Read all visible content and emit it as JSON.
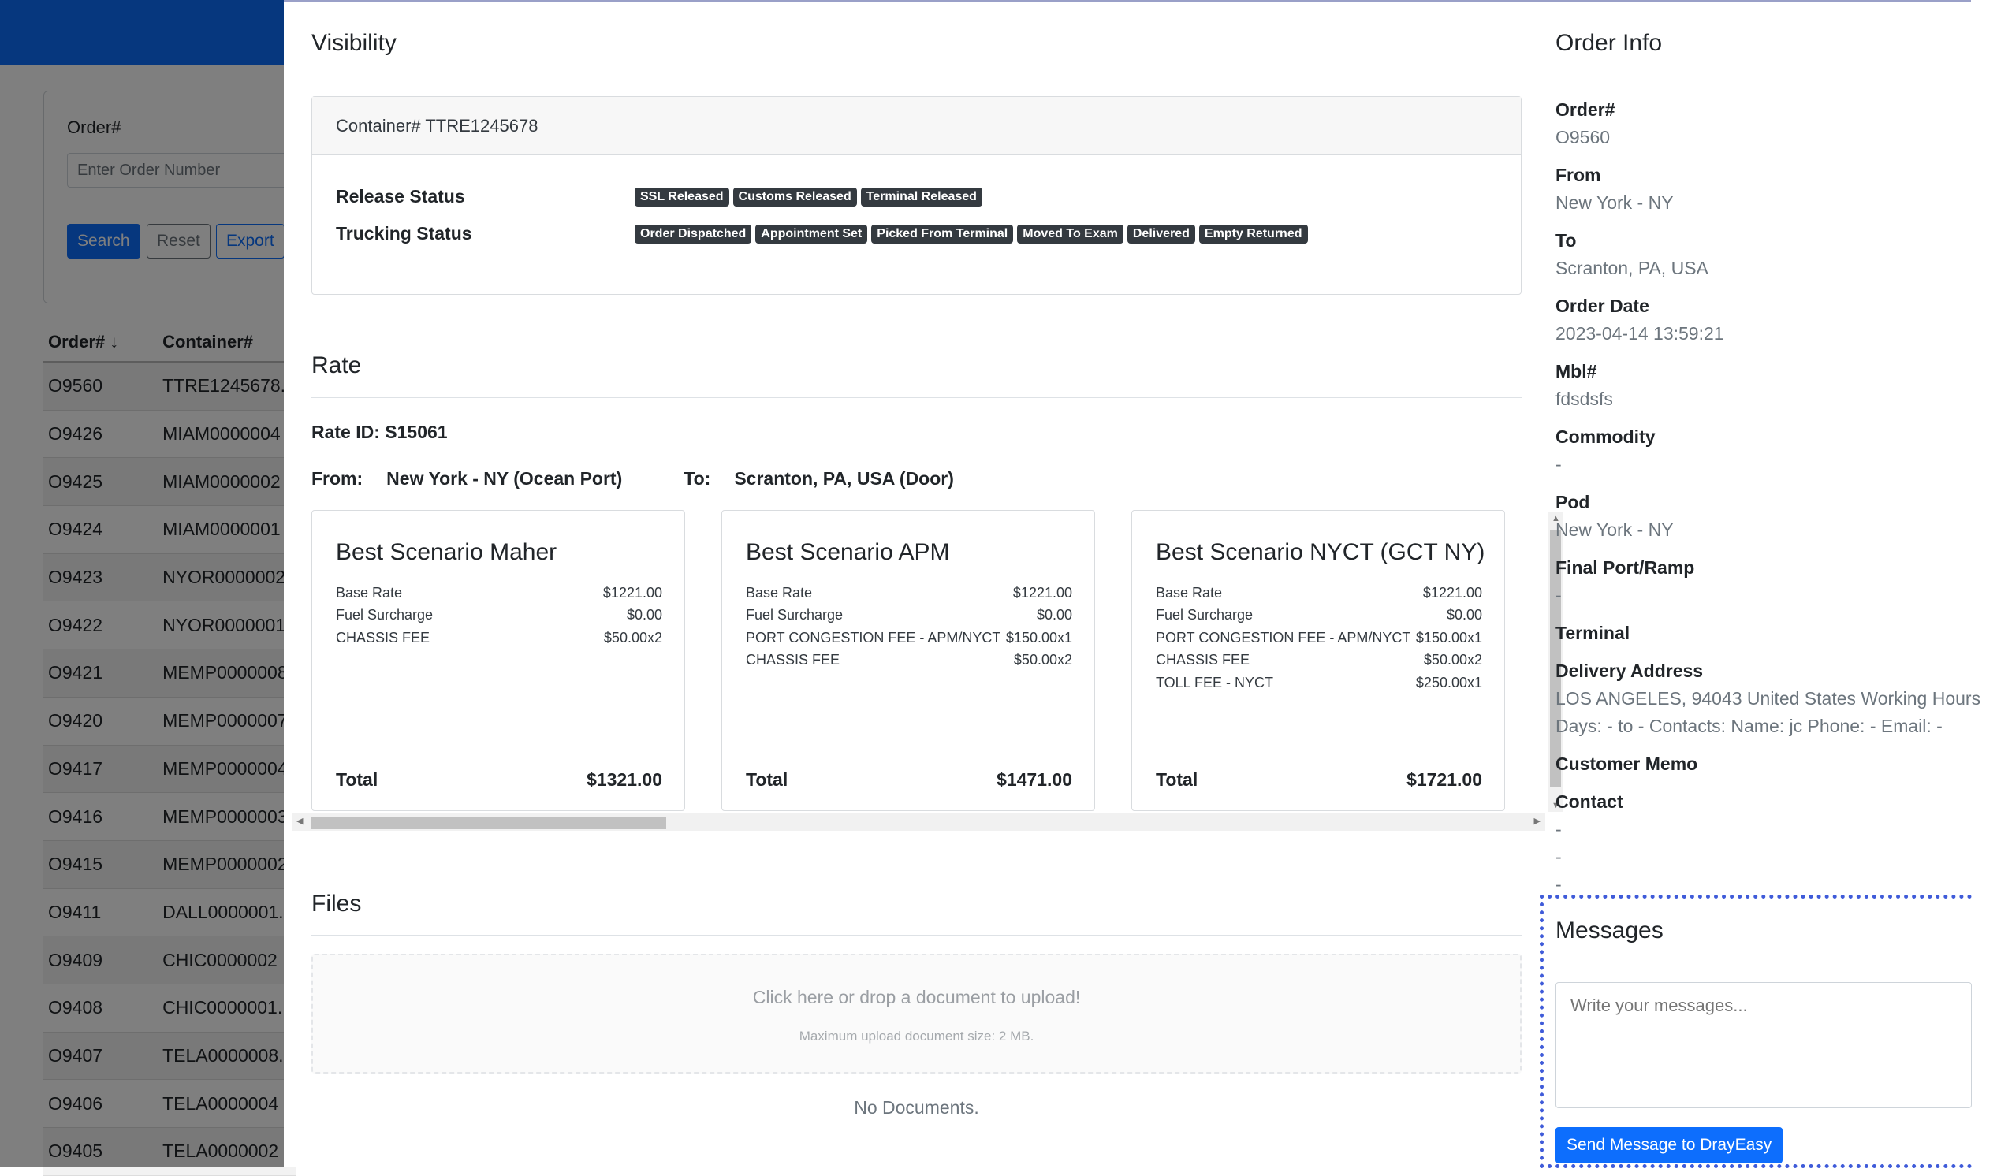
{
  "background": {
    "filter": {
      "order_label": "Order#",
      "order_placeholder": "Enter Order Number",
      "search": "Search",
      "reset": "Reset",
      "export": "Export"
    },
    "table": {
      "headers": [
        "Order# ↓",
        "Container#"
      ],
      "rows": [
        [
          "O9560",
          "TTRE1245678..."
        ],
        [
          "O9426",
          "MIAM0000004"
        ],
        [
          "O9425",
          "MIAM0000002"
        ],
        [
          "O9424",
          "MIAM0000001"
        ],
        [
          "O9423",
          "NYOR0000002"
        ],
        [
          "O9422",
          "NYOR0000001"
        ],
        [
          "O9421",
          "MEMP0000008"
        ],
        [
          "O9420",
          "MEMP0000007"
        ],
        [
          "O9417",
          "MEMP0000004"
        ],
        [
          "O9416",
          "MEMP0000003"
        ],
        [
          "O9415",
          "MEMP0000002"
        ],
        [
          "O9411",
          "DALL0000001..."
        ],
        [
          "O9409",
          "CHIC0000002"
        ],
        [
          "O9408",
          "CHIC0000001..."
        ],
        [
          "O9407",
          "TELA0000008..."
        ],
        [
          "O9406",
          "TELA0000004"
        ],
        [
          "O9405",
          "TELA0000002"
        ]
      ]
    }
  },
  "visibility": {
    "title": "Visibility",
    "container": "Container# TTRE1245678",
    "release_label": "Release Status",
    "release_badges": [
      "SSL Released",
      "Customs Released",
      "Terminal Released"
    ],
    "trucking_label": "Trucking Status",
    "trucking_badges": [
      "Order Dispatched",
      "Appointment Set",
      "Picked From Terminal",
      "Moved To Exam",
      "Delivered",
      "Empty Returned"
    ]
  },
  "rate": {
    "title": "Rate",
    "rate_id": "Rate ID: S15061",
    "from_label": "From:",
    "from_value": "New York - NY (Ocean Port)",
    "to_label": "To:",
    "to_value": "Scranton, PA, USA (Door)",
    "cards": [
      {
        "title": "Best Scenario Maher",
        "fees": [
          [
            "Base Rate",
            "$1221.00"
          ],
          [
            "Fuel Surcharge",
            "$0.00"
          ],
          [
            "CHASSIS FEE",
            "$50.00x2"
          ]
        ],
        "total_label": "Total",
        "total": "$1321.00"
      },
      {
        "title": "Best Scenario APM",
        "fees": [
          [
            "Base Rate",
            "$1221.00"
          ],
          [
            "Fuel Surcharge",
            "$0.00"
          ],
          [
            "PORT CONGESTION FEE - APM/NYCT",
            "$150.00x1"
          ],
          [
            "CHASSIS FEE",
            "$50.00x2"
          ]
        ],
        "total_label": "Total",
        "total": "$1471.00"
      },
      {
        "title": "Best Scenario NYCT (GCT NY)",
        "fees": [
          [
            "Base Rate",
            "$1221.00"
          ],
          [
            "Fuel Surcharge",
            "$0.00"
          ],
          [
            "PORT CONGESTION FEE - APM/NYCT",
            "$150.00x1"
          ],
          [
            "CHASSIS FEE",
            "$50.00x2"
          ],
          [
            "TOLL FEE - NYCT",
            "$250.00x1"
          ]
        ],
        "total_label": "Total",
        "total": "$1721.00"
      }
    ]
  },
  "files": {
    "title": "Files",
    "drop_text": "Click here or drop a document to upload!",
    "drop_sub": "Maximum upload document size: 2 MB.",
    "empty": "No Documents."
  },
  "order_info": {
    "title": "Order Info",
    "fields": [
      {
        "label": "Order#",
        "values": [
          "O9560"
        ]
      },
      {
        "label": "From",
        "values": [
          "New York - NY"
        ]
      },
      {
        "label": "To",
        "values": [
          "Scranton, PA, USA"
        ]
      },
      {
        "label": "Order Date",
        "values": [
          "2023-04-14 13:59:21"
        ]
      },
      {
        "label": "Mbl#",
        "values": [
          "fdsdsfs"
        ]
      },
      {
        "label": "Commodity",
        "values": [
          "-"
        ]
      },
      {
        "label": "Pod",
        "values": [
          "New York - NY"
        ]
      },
      {
        "label": "Final Port/Ramp",
        "values": [
          "-"
        ]
      },
      {
        "label": "Terminal",
        "values": []
      },
      {
        "label": "Delivery Address",
        "values": [
          "LOS ANGELES, 94043 United States Working Hours",
          "Days: - to - Contacts: Name: jc Phone: - Email: -"
        ]
      },
      {
        "label": "Customer Memo",
        "values": []
      },
      {
        "label": "Contact",
        "values": [
          "-",
          "-",
          "-"
        ]
      }
    ]
  },
  "messages": {
    "title": "Messages",
    "placeholder": "Write your messages...",
    "send": "Send Message to DrayEasy"
  },
  "colors": {
    "primary": "#0d6efd",
    "badge": "#343a40",
    "focus_outline": "#3f5bd9"
  }
}
